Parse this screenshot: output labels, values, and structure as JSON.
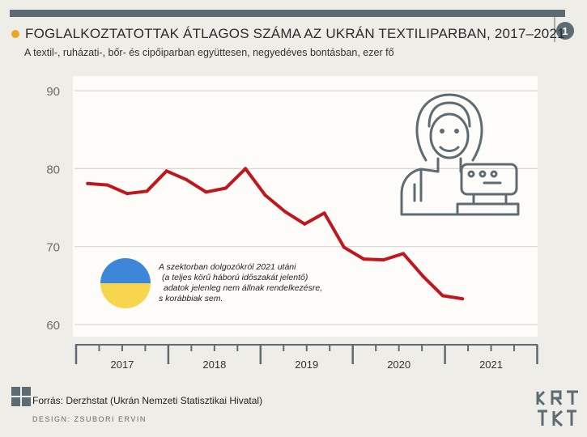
{
  "header": {
    "title": "FOGLALKOZTATOTTAK ÁTLAGOS SZÁMA AZ UKRÁN TEXTILIPARBAN, 2017–2021",
    "subtitle": "A textil-, ruházati-, bőr- és cipőiparban együttesen, negyedéves bontásban, ezer fő",
    "badge_number": "1"
  },
  "footer": {
    "source": "Forrás: Derzhstat (Ukrán Nemzeti Statisztikai Hivatal)",
    "design": "DESIGN: ZSUBORI ERVIN",
    "brand": "KRTK"
  },
  "colors": {
    "line": "#c0161d",
    "flag_blue": "#3d86d9",
    "flag_yellow": "#f7d54d",
    "plot_bg": "#fdfcf8",
    "grid": "#dcdcdc",
    "icon": "#5d6b72",
    "accent_dot": "#e6a92a"
  },
  "icons": [
    "worker-sewing-machine-icon",
    "ukraine-flag-circle-icon",
    "krtk-logo-icon"
  ],
  "chart_data": {
    "type": "line",
    "title": "FOGLALKOZTATOTTAK ÁTLAGOS SZÁMA AZ UKRÁN TEXTILIPARBAN, 2017–2021",
    "xlabel": "",
    "ylabel": "",
    "ylim": [
      60,
      90
    ],
    "yticks": [
      60,
      70,
      80,
      90
    ],
    "grid": true,
    "legend": "none",
    "year_labels": [
      "2017",
      "2018",
      "2019",
      "2020",
      "2021"
    ],
    "x": [
      "2017 Q1",
      "2017 Q2",
      "2017 Q3",
      "2017 Q4",
      "2018 Q1",
      "2018 Q2",
      "2018 Q3",
      "2018 Q4",
      "2019 Q1",
      "2019 Q2",
      "2019 Q3",
      "2019 Q4",
      "2020 Q1",
      "2020 Q2",
      "2020 Q3",
      "2020 Q4",
      "2021 Q1",
      "2021 Q2",
      "2021 Q3",
      "2021 Q4"
    ],
    "values": [
      78.1,
      77.9,
      76.8,
      77.1,
      79.7,
      78.6,
      77.0,
      77.5,
      80.0,
      76.6,
      74.5,
      72.9,
      74.3,
      69.9,
      68.4,
      68.3,
      69.1,
      66.2,
      63.7,
      63.3
    ],
    "annotation": {
      "lines": [
        "A szektorban dolgozókról 2021 utáni",
        "(a teljes körű háború időszakát jelentő)",
        "adatok jelenleg nem állnak rendelkezésre,",
        "s korábbiak sem."
      ]
    }
  }
}
